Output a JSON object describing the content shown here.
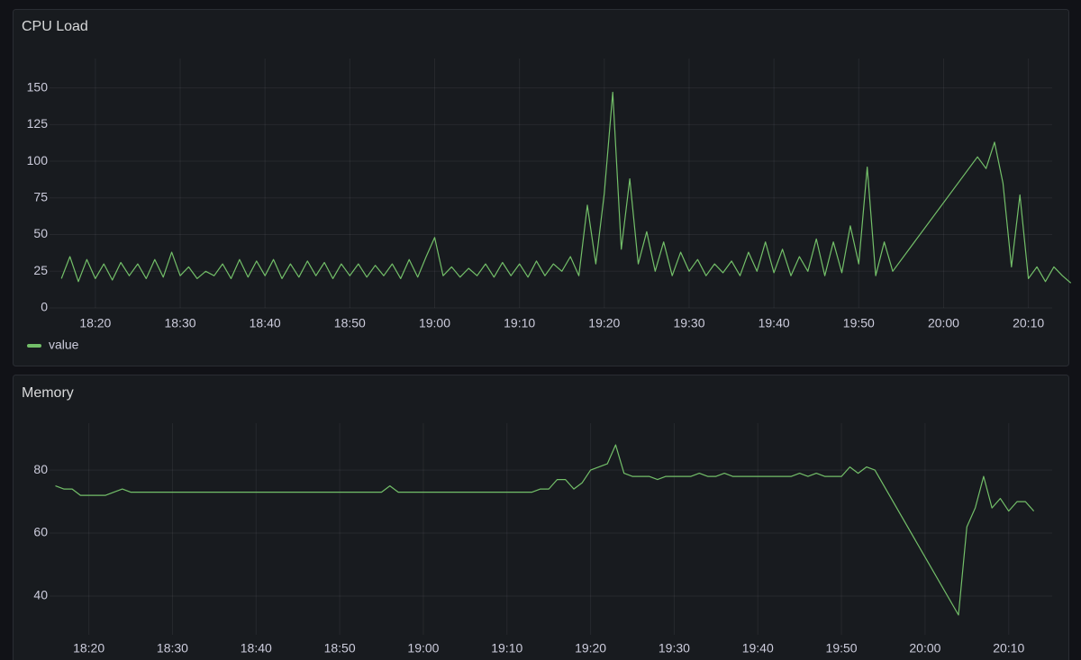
{
  "chart_data": [
    {
      "type": "line",
      "title": "CPU Load",
      "x": [
        1096,
        1097,
        1098,
        1099,
        1100,
        1101,
        1102,
        1103,
        1104,
        1105,
        1106,
        1107,
        1108,
        1109,
        1110,
        1111,
        1112,
        1113,
        1114,
        1115,
        1116,
        1117,
        1118,
        1119,
        1120,
        1121,
        1122,
        1123,
        1124,
        1125,
        1126,
        1127,
        1128,
        1129,
        1130,
        1131,
        1132,
        1133,
        1134,
        1135,
        1136,
        1137,
        1138,
        1139,
        1140,
        1141,
        1142,
        1143,
        1144,
        1145,
        1146,
        1147,
        1148,
        1149,
        1150,
        1151,
        1152,
        1153,
        1154,
        1155,
        1156,
        1157,
        1158,
        1159,
        1160,
        1161,
        1162,
        1163,
        1164,
        1165,
        1166,
        1167,
        1168,
        1169,
        1170,
        1171,
        1172,
        1173,
        1174,
        1175,
        1176,
        1177,
        1178,
        1179,
        1180,
        1181,
        1182,
        1183,
        1184,
        1185,
        1186,
        1187,
        1188,
        1189,
        1190,
        1191,
        1192,
        1193,
        1194,
        1204,
        1205,
        1206,
        1207,
        1208,
        1209,
        1210,
        1211,
        1212,
        1213,
        1214,
        1215
      ],
      "series": [
        {
          "name": "value",
          "color": "#73bf69",
          "values": [
            20,
            35,
            18,
            33,
            20,
            30,
            19,
            31,
            22,
            30,
            20,
            33,
            21,
            38,
            22,
            28,
            20,
            25,
            22,
            30,
            20,
            33,
            21,
            32,
            22,
            33,
            20,
            30,
            21,
            32,
            22,
            31,
            20,
            30,
            22,
            30,
            21,
            29,
            22,
            30,
            20,
            33,
            21,
            35,
            48,
            22,
            28,
            21,
            27,
            22,
            30,
            21,
            31,
            22,
            30,
            21,
            32,
            22,
            30,
            25,
            35,
            22,
            70,
            30,
            78,
            147,
            40,
            88,
            30,
            52,
            25,
            45,
            22,
            38,
            25,
            33,
            22,
            30,
            24,
            32,
            22,
            38,
            25,
            45,
            24,
            40,
            22,
            35,
            25,
            47,
            22,
            45,
            24,
            56,
            30,
            96,
            22,
            45,
            25,
            103,
            95,
            113,
            85,
            28,
            77,
            20,
            28,
            18,
            28,
            22,
            17
          ]
        }
      ],
      "xlim": [
        1094.6,
        1212.8
      ],
      "xticks": [
        {
          "value": 1100,
          "label": "18:20"
        },
        {
          "value": 1110,
          "label": "18:30"
        },
        {
          "value": 1120,
          "label": "18:40"
        },
        {
          "value": 1130,
          "label": "18:50"
        },
        {
          "value": 1140,
          "label": "19:00"
        },
        {
          "value": 1150,
          "label": "19:10"
        },
        {
          "value": 1160,
          "label": "19:20"
        },
        {
          "value": 1170,
          "label": "19:30"
        },
        {
          "value": 1180,
          "label": "19:40"
        },
        {
          "value": 1190,
          "label": "19:50"
        },
        {
          "value": 1200,
          "label": "20:00"
        },
        {
          "value": 1210,
          "label": "20:10"
        }
      ],
      "ylim": [
        0,
        170
      ],
      "yticks": [
        0,
        25,
        50,
        75,
        100,
        125,
        150
      ],
      "grid": true
    },
    {
      "type": "line",
      "title": "Memory",
      "x": [
        1096,
        1097,
        1098,
        1099,
        1100,
        1101,
        1102,
        1103,
        1104,
        1105,
        1106,
        1107,
        1108,
        1109,
        1110,
        1111,
        1112,
        1113,
        1114,
        1115,
        1116,
        1117,
        1118,
        1119,
        1120,
        1121,
        1122,
        1123,
        1124,
        1125,
        1126,
        1127,
        1128,
        1129,
        1130,
        1131,
        1132,
        1133,
        1134,
        1135,
        1136,
        1137,
        1138,
        1139,
        1140,
        1141,
        1142,
        1143,
        1144,
        1145,
        1146,
        1147,
        1148,
        1149,
        1150,
        1151,
        1152,
        1153,
        1154,
        1155,
        1156,
        1157,
        1158,
        1159,
        1160,
        1161,
        1162,
        1163,
        1164,
        1165,
        1166,
        1167,
        1168,
        1169,
        1170,
        1171,
        1172,
        1173,
        1174,
        1175,
        1176,
        1177,
        1178,
        1179,
        1180,
        1181,
        1182,
        1183,
        1184,
        1185,
        1186,
        1187,
        1188,
        1189,
        1190,
        1191,
        1192,
        1193,
        1194,
        1204,
        1205,
        1206,
        1207,
        1208,
        1209,
        1210,
        1211,
        1212,
        1213
      ],
      "values": [
        75,
        74,
        74,
        72,
        72,
        72,
        72,
        73,
        74,
        73,
        73,
        73,
        73,
        73,
        73,
        73,
        73,
        73,
        73,
        73,
        73,
        73,
        73,
        73,
        73,
        73,
        73,
        73,
        73,
        73,
        73,
        73,
        73,
        73,
        73,
        73,
        73,
        73,
        73,
        73,
        75,
        73,
        73,
        73,
        73,
        73,
        73,
        73,
        73,
        73,
        73,
        73,
        73,
        73,
        73,
        73,
        73,
        73,
        74,
        74,
        77,
        77,
        74,
        76,
        80,
        81,
        82,
        88,
        79,
        78,
        78,
        78,
        77,
        78,
        78,
        78,
        78,
        79,
        78,
        78,
        79,
        78,
        78,
        78,
        78,
        78,
        78,
        78,
        78,
        79,
        78,
        79,
        78,
        78,
        78,
        81,
        79,
        81,
        80,
        34,
        62,
        68,
        78,
        68,
        71,
        67,
        70,
        70,
        67
      ],
      "color": "#73bf69",
      "xlim": [
        1095.3,
        1215.2
      ],
      "xticks": [
        {
          "value": 1100,
          "label": "18:20"
        },
        {
          "value": 1110,
          "label": "18:30"
        },
        {
          "value": 1120,
          "label": "18:40"
        },
        {
          "value": 1130,
          "label": "18:50"
        },
        {
          "value": 1140,
          "label": "19:00"
        },
        {
          "value": 1150,
          "label": "19:10"
        },
        {
          "value": 1160,
          "label": "19:20"
        },
        {
          "value": 1170,
          "label": "19:30"
        },
        {
          "value": 1180,
          "label": "19:40"
        },
        {
          "value": 1190,
          "label": "19:50"
        },
        {
          "value": 1200,
          "label": "20:00"
        },
        {
          "value": 1210,
          "label": "20:10"
        }
      ],
      "ylim": [
        27.7,
        94.9
      ],
      "yticks": [
        40,
        60,
        80
      ],
      "grid": true
    }
  ]
}
